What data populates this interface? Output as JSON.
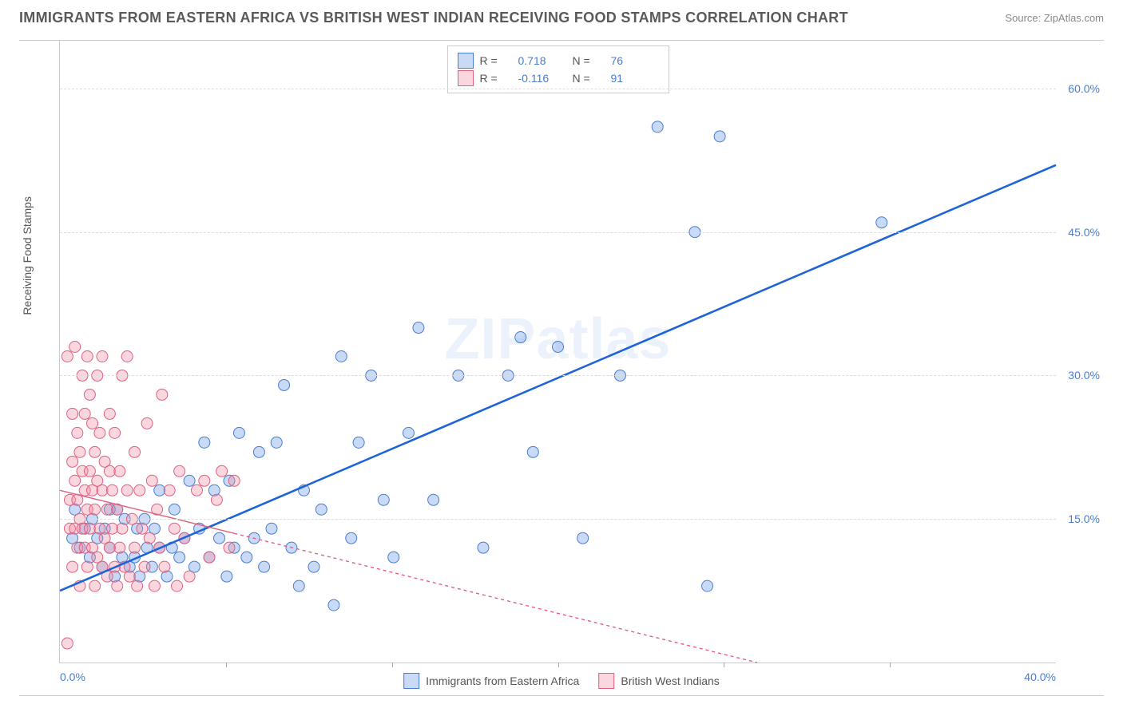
{
  "title": "IMMIGRANTS FROM EASTERN AFRICA VS BRITISH WEST INDIAN RECEIVING FOOD STAMPS CORRELATION CHART",
  "source": "Source: ZipAtlas.com",
  "ylabel": "Receiving Food Stamps",
  "watermark": "ZIPatlas",
  "chart": {
    "type": "scatter",
    "background_color": "#ffffff",
    "grid_color": "#dddddd",
    "axis_color": "#cccccc",
    "xlim": [
      0,
      40
    ],
    "ylim": [
      0,
      65
    ],
    "xtick_labels": [
      {
        "v": 0,
        "label": "0.0%"
      },
      {
        "v": 40,
        "label": "40.0%"
      }
    ],
    "xtick_marks": [
      6.67,
      13.33,
      20,
      26.67,
      33.33
    ],
    "ytick_labels": [
      {
        "v": 15,
        "label": "15.0%"
      },
      {
        "v": 30,
        "label": "30.0%"
      },
      {
        "v": 45,
        "label": "45.0%"
      },
      {
        "v": 60,
        "label": "60.0%"
      }
    ],
    "label_color": "#4a7dd0",
    "label_fontsize": 14,
    "series": [
      {
        "name": "Immigrants from Eastern Africa",
        "color_fill": "rgba(100,150,230,0.35)",
        "color_stroke": "#4a7dd0",
        "marker_radius": 7,
        "R": "0.718",
        "N": "76",
        "regression": {
          "x1": 0,
          "y1": 7.5,
          "x2": 40,
          "y2": 52,
          "stroke": "#1e63d8",
          "width": 2.6,
          "dash": "none"
        },
        "points": [
          [
            0.5,
            13
          ],
          [
            0.6,
            16
          ],
          [
            0.8,
            12
          ],
          [
            1.0,
            14
          ],
          [
            1.2,
            11
          ],
          [
            1.3,
            15
          ],
          [
            1.5,
            13
          ],
          [
            1.7,
            10
          ],
          [
            1.8,
            14
          ],
          [
            2.0,
            16
          ],
          [
            2.0,
            12
          ],
          [
            2.2,
            9
          ],
          [
            2.3,
            16
          ],
          [
            2.5,
            11
          ],
          [
            2.6,
            15
          ],
          [
            2.8,
            10
          ],
          [
            3.0,
            11
          ],
          [
            3.1,
            14
          ],
          [
            3.2,
            9
          ],
          [
            3.4,
            15
          ],
          [
            3.5,
            12
          ],
          [
            3.7,
            10
          ],
          [
            3.8,
            14
          ],
          [
            4.0,
            12
          ],
          [
            4.0,
            18
          ],
          [
            4.3,
            9
          ],
          [
            4.5,
            12
          ],
          [
            4.6,
            16
          ],
          [
            4.8,
            11
          ],
          [
            5.0,
            13
          ],
          [
            5.2,
            19
          ],
          [
            5.4,
            10
          ],
          [
            5.6,
            14
          ],
          [
            5.8,
            23
          ],
          [
            6.0,
            11
          ],
          [
            6.2,
            18
          ],
          [
            6.4,
            13
          ],
          [
            6.7,
            9
          ],
          [
            6.8,
            19
          ],
          [
            7.0,
            12
          ],
          [
            7.2,
            24
          ],
          [
            7.5,
            11
          ],
          [
            7.8,
            13
          ],
          [
            8.0,
            22
          ],
          [
            8.2,
            10
          ],
          [
            8.5,
            14
          ],
          [
            8.7,
            23
          ],
          [
            9.0,
            29
          ],
          [
            9.3,
            12
          ],
          [
            9.6,
            8
          ],
          [
            9.8,
            18
          ],
          [
            10.2,
            10
          ],
          [
            10.5,
            16
          ],
          [
            11.0,
            6
          ],
          [
            11.3,
            32
          ],
          [
            11.7,
            13
          ],
          [
            12.0,
            23
          ],
          [
            12.5,
            30
          ],
          [
            13.0,
            17
          ],
          [
            13.4,
            11
          ],
          [
            14.0,
            24
          ],
          [
            14.4,
            35
          ],
          [
            15.0,
            17
          ],
          [
            16.0,
            30
          ],
          [
            17.0,
            12
          ],
          [
            18.0,
            30
          ],
          [
            18.5,
            34
          ],
          [
            19.0,
            22
          ],
          [
            20.0,
            33
          ],
          [
            21.0,
            13
          ],
          [
            22.5,
            30
          ],
          [
            24.0,
            56
          ],
          [
            25.5,
            45
          ],
          [
            26.0,
            8
          ],
          [
            26.5,
            55
          ],
          [
            33.0,
            46
          ]
        ]
      },
      {
        "name": "British West Indians",
        "color_fill": "rgba(240,140,160,0.35)",
        "color_stroke": "#e06080",
        "marker_radius": 7,
        "R": "-0.116",
        "N": "91",
        "regression": {
          "x1": 0,
          "y1": 18,
          "x2": 28,
          "y2": 0,
          "stroke": "#e06080",
          "width": 1.4,
          "dash": "4,4",
          "solid_until_x": 7
        },
        "points": [
          [
            0.3,
            32
          ],
          [
            0.3,
            2
          ],
          [
            0.4,
            14
          ],
          [
            0.4,
            17
          ],
          [
            0.5,
            26
          ],
          [
            0.5,
            10
          ],
          [
            0.5,
            21
          ],
          [
            0.6,
            14
          ],
          [
            0.6,
            19
          ],
          [
            0.6,
            33
          ],
          [
            0.7,
            12
          ],
          [
            0.7,
            24
          ],
          [
            0.7,
            17
          ],
          [
            0.8,
            15
          ],
          [
            0.8,
            22
          ],
          [
            0.8,
            8
          ],
          [
            0.9,
            30
          ],
          [
            0.9,
            14
          ],
          [
            0.9,
            20
          ],
          [
            1.0,
            12
          ],
          [
            1.0,
            18
          ],
          [
            1.0,
            26
          ],
          [
            1.1,
            10
          ],
          [
            1.1,
            16
          ],
          [
            1.1,
            32
          ],
          [
            1.2,
            14
          ],
          [
            1.2,
            20
          ],
          [
            1.2,
            28
          ],
          [
            1.3,
            12
          ],
          [
            1.3,
            18
          ],
          [
            1.3,
            25
          ],
          [
            1.4,
            8
          ],
          [
            1.4,
            16
          ],
          [
            1.4,
            22
          ],
          [
            1.5,
            11
          ],
          [
            1.5,
            19
          ],
          [
            1.5,
            30
          ],
          [
            1.6,
            14
          ],
          [
            1.6,
            24
          ],
          [
            1.7,
            10
          ],
          [
            1.7,
            18
          ],
          [
            1.7,
            32
          ],
          [
            1.8,
            13
          ],
          [
            1.8,
            21
          ],
          [
            1.9,
            9
          ],
          [
            1.9,
            16
          ],
          [
            2.0,
            12
          ],
          [
            2.0,
            20
          ],
          [
            2.0,
            26
          ],
          [
            2.1,
            14
          ],
          [
            2.1,
            18
          ],
          [
            2.2,
            10
          ],
          [
            2.2,
            24
          ],
          [
            2.3,
            8
          ],
          [
            2.3,
            16
          ],
          [
            2.4,
            12
          ],
          [
            2.4,
            20
          ],
          [
            2.5,
            14
          ],
          [
            2.5,
            30
          ],
          [
            2.6,
            10
          ],
          [
            2.7,
            18
          ],
          [
            2.7,
            32
          ],
          [
            2.8,
            9
          ],
          [
            2.9,
            15
          ],
          [
            3.0,
            12
          ],
          [
            3.0,
            22
          ],
          [
            3.1,
            8
          ],
          [
            3.2,
            18
          ],
          [
            3.3,
            14
          ],
          [
            3.4,
            10
          ],
          [
            3.5,
            25
          ],
          [
            3.6,
            13
          ],
          [
            3.7,
            19
          ],
          [
            3.8,
            8
          ],
          [
            3.9,
            16
          ],
          [
            4.0,
            12
          ],
          [
            4.1,
            28
          ],
          [
            4.2,
            10
          ],
          [
            4.4,
            18
          ],
          [
            4.6,
            14
          ],
          [
            4.7,
            8
          ],
          [
            4.8,
            20
          ],
          [
            5.0,
            13
          ],
          [
            5.2,
            9
          ],
          [
            5.5,
            18
          ],
          [
            5.8,
            19
          ],
          [
            6.0,
            11
          ],
          [
            6.3,
            17
          ],
          [
            6.5,
            20
          ],
          [
            6.8,
            12
          ],
          [
            7.0,
            19
          ]
        ]
      }
    ]
  },
  "legend_bottom": [
    {
      "swatch": "blue",
      "label": "Immigrants from Eastern Africa"
    },
    {
      "swatch": "pink",
      "label": "British West Indians"
    }
  ]
}
